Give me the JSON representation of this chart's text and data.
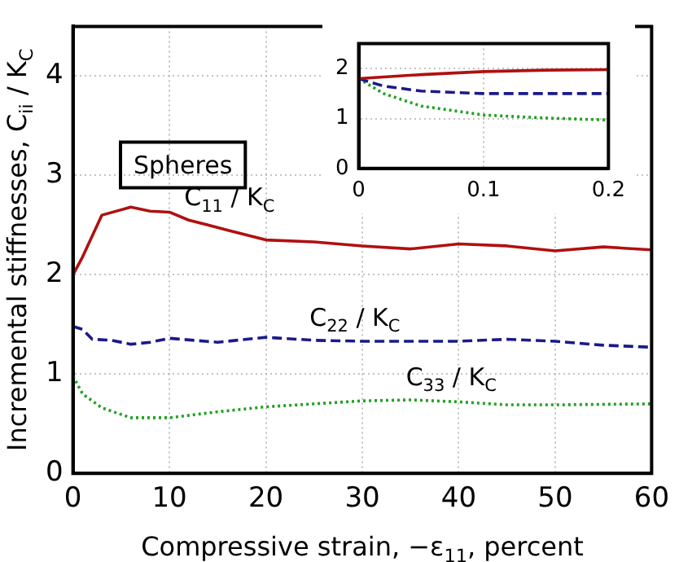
{
  "chart_data": [
    {
      "type": "line",
      "xlabel": "Compressive strain, −ε$_{11}$, percent",
      "ylabel": "Incremental stiffnesses, C$_{ii}$ / K$_{C}$",
      "annotations": [
        "Spheres"
      ],
      "xlim": [
        0,
        60
      ],
      "xticks": [
        0,
        10,
        20,
        30,
        40,
        50,
        60
      ],
      "ylim": [
        0,
        4.5
      ],
      "yticks": [
        0,
        1,
        2,
        3,
        4
      ],
      "grid": true,
      "legend": false,
      "marker": "none",
      "series": [
        {
          "name": "C$_{11}$ / K$_{C}$",
          "color": "#b01010",
          "line_style": "solid",
          "x": [
            0,
            1,
            3,
            6,
            8,
            10,
            12,
            16,
            20,
            25,
            30,
            35,
            40,
            45,
            50,
            55,
            60
          ],
          "values": [
            2.0,
            2.18,
            2.6,
            2.68,
            2.64,
            2.63,
            2.55,
            2.45,
            2.35,
            2.33,
            2.29,
            2.26,
            2.31,
            2.29,
            2.24,
            2.28,
            2.25
          ]
        },
        {
          "name": "C$_{22}$ / K$_{C}$",
          "color": "#1a1a8c",
          "line_style": "dashed",
          "x": [
            0,
            1,
            2,
            4,
            6,
            8,
            10,
            15,
            20,
            25,
            30,
            40,
            45,
            50,
            55,
            60
          ],
          "values": [
            1.48,
            1.45,
            1.35,
            1.34,
            1.3,
            1.32,
            1.36,
            1.32,
            1.37,
            1.34,
            1.33,
            1.33,
            1.35,
            1.33,
            1.29,
            1.27
          ]
        },
        {
          "name": "C$_{33}$ / K$_{C}$",
          "color": "#22a022",
          "line_style": "dotted",
          "x": [
            0,
            1,
            3,
            6,
            10,
            15,
            20,
            30,
            35,
            40,
            45,
            50,
            60
          ],
          "values": [
            0.98,
            0.8,
            0.66,
            0.56,
            0.56,
            0.62,
            0.67,
            0.73,
            0.74,
            0.72,
            0.69,
            0.69,
            0.7
          ]
        }
      ]
    },
    {
      "type": "line",
      "xlim": [
        0,
        0.2
      ],
      "xticks": [
        0,
        0.1,
        0.2
      ],
      "ylim": [
        0,
        2.5
      ],
      "yticks": [
        0,
        1,
        2
      ],
      "grid": true,
      "legend": false,
      "marker": "none",
      "series": [
        {
          "color": "#b01010",
          "line_style": "solid",
          "x": [
            0,
            0.05,
            0.1,
            0.15,
            0.2
          ],
          "values": [
            1.8,
            1.88,
            1.94,
            1.97,
            1.98
          ]
        },
        {
          "color": "#1a1a8c",
          "line_style": "dashed",
          "x": [
            0,
            0.02,
            0.05,
            0.1,
            0.2
          ],
          "values": [
            1.8,
            1.65,
            1.55,
            1.5,
            1.5
          ]
        },
        {
          "color": "#22a022",
          "line_style": "dotted",
          "x": [
            0,
            0.02,
            0.05,
            0.1,
            0.15,
            0.2
          ],
          "values": [
            1.8,
            1.5,
            1.25,
            1.07,
            1.01,
            0.97
          ]
        }
      ]
    }
  ]
}
